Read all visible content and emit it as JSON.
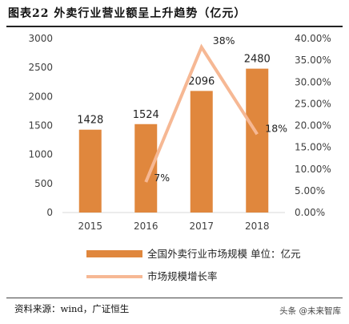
{
  "title": "图表22 外卖行业营业额呈上升趋势（亿元）",
  "source": "资料来源：wind，广证恒生",
  "watermark": "头条 @未来智库",
  "colors": {
    "bar": "#E0873D",
    "line": "#F6B894",
    "axis": "#D9D9D9",
    "text": "#404040"
  },
  "chart_data": {
    "type": "bar",
    "categories": [
      "2015",
      "2016",
      "2017",
      "2018"
    ],
    "series": [
      {
        "name": "全国外卖行业市场规模 单位：亿元",
        "type": "bar",
        "axis": "left",
        "values": [
          1428,
          1524,
          2096,
          2480
        ],
        "labels": [
          "1428",
          "1524",
          "2096",
          "2480"
        ]
      },
      {
        "name": "市场规模增长率",
        "type": "line",
        "axis": "right",
        "values": [
          null,
          7,
          38,
          18
        ],
        "labels": [
          "",
          "7%",
          "38%",
          "18%"
        ]
      }
    ],
    "y_left": {
      "min": 0,
      "max": 3000,
      "step": 500,
      "ticks": [
        "0",
        "500",
        "1000",
        "1500",
        "2000",
        "2500",
        "3000"
      ]
    },
    "y_right": {
      "min": 0,
      "max": 40,
      "step": 5,
      "ticks": [
        "0.00%",
        "5.00%",
        "10.00%",
        "15.00%",
        "20.00%",
        "25.00%",
        "30.00%",
        "35.00%",
        "40.00%"
      ]
    },
    "legend_position": "bottom",
    "grid": false
  }
}
